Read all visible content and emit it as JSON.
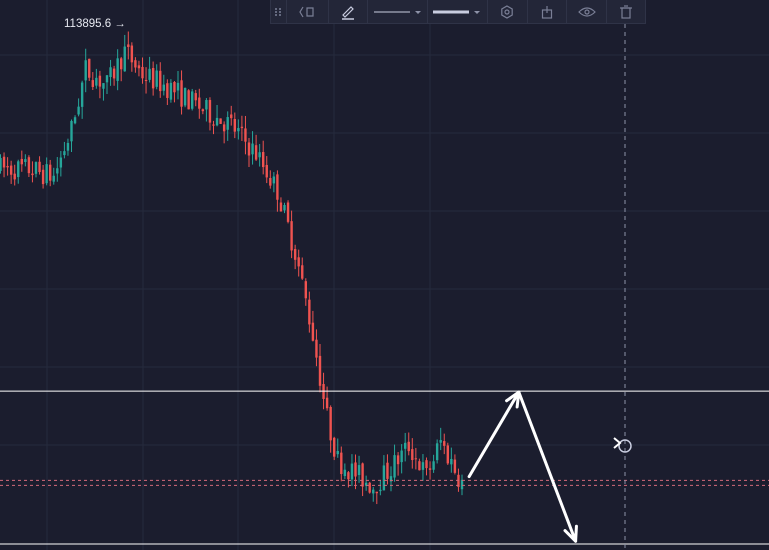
{
  "chart_data": {
    "type": "candlestick",
    "high_marker": {
      "label": "113895.6 →",
      "price": 113895.6
    },
    "ylim": [
      108780,
      114700
    ],
    "candle_count": 131,
    "horizontal_levels": [
      {
        "name": "resistance",
        "price": 110490,
        "color": "#ffffff"
      },
      {
        "name": "support",
        "price": 108845,
        "color": "#ffffff"
      }
    ],
    "current_price_lines": [
      109530,
      109475
    ],
    "projection_path": [
      {
        "candle": 132,
        "price": 109570
      },
      {
        "candle": 146,
        "price": 110480
      },
      {
        "candle": 162,
        "price": 108875
      }
    ],
    "colors": {
      "up": "#26a69a",
      "down": "#ef5350",
      "background": "#1b1d2e",
      "grid": "#262a3d",
      "level": "#ffffff",
      "price_line": "#d46a7a"
    }
  },
  "toolbar": {
    "icons": [
      "drag-handle-icon",
      "template-icon",
      "pencil-icon",
      "line-style-icon",
      "line-width-icon",
      "settings-icon",
      "lock-icon",
      "visibility-icon",
      "trash-icon"
    ]
  }
}
